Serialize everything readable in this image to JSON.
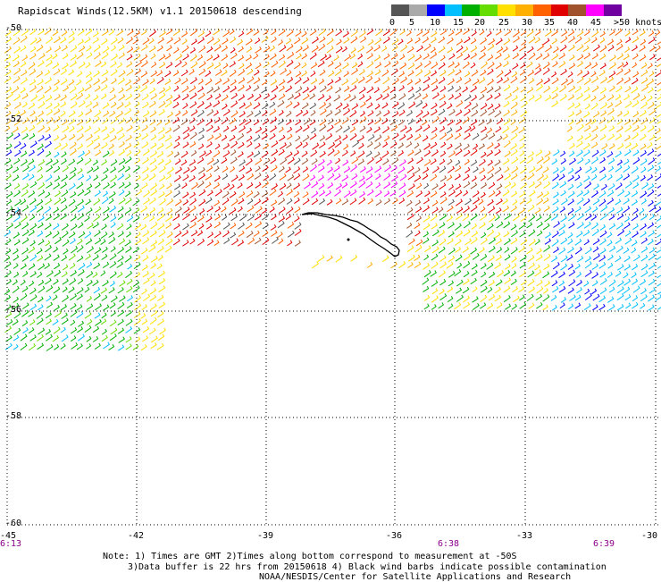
{
  "header": {
    "title": "Rapidscat Winds(12.5KM) v1.1 20150618 descending"
  },
  "legend": {
    "colors": [
      "#555555",
      "#aaaaaa",
      "#0000ff",
      "#00bfff",
      "#00b000",
      "#66dd00",
      "#ffe000",
      "#ffb000",
      "#ff6000",
      "#e00000",
      "#a0522d",
      "#ff00ff",
      "#7000a0"
    ],
    "ticks": [
      "0",
      "5",
      "10",
      "15",
      "20",
      "25",
      "30",
      "35",
      "40",
      "45",
      ">50 knots"
    ]
  },
  "axes": {
    "lat_labels": [
      "-50",
      "-52",
      "-54",
      "-56",
      "-58",
      "-60"
    ],
    "lon_labels": [
      "-45",
      "-42",
      "-39",
      "-36",
      "-33",
      "-30"
    ],
    "time_labels": [
      "6:13",
      "6:38",
      "6:39"
    ]
  },
  "notes": [
    "Note: 1) Times are GMT 2)Times along bottom correspond to measurement at -50S",
    "3)Data buffer is 22 hrs from 20150618 4) Black wind barbs indicate possible contamination",
    "NOAA/NESDIS/Center for Satellite Applications and Research"
  ],
  "map": {
    "land": "South Georgia Island",
    "no_data_color": "#ffffff"
  }
}
